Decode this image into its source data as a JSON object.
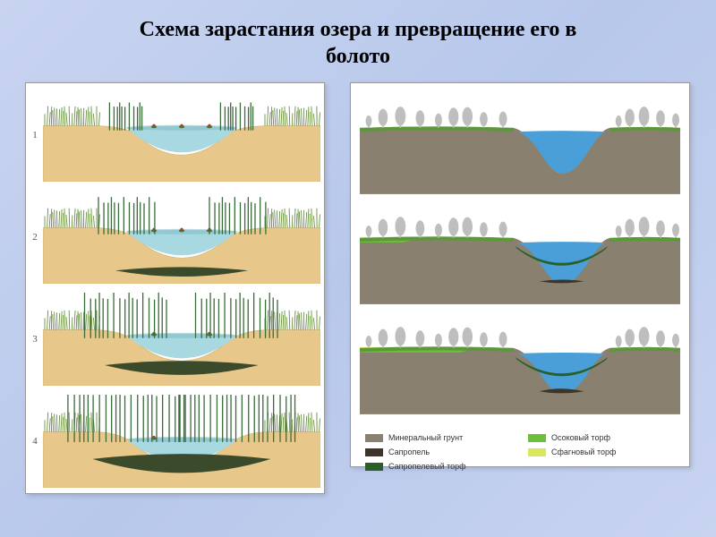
{
  "title_line1": "Схема зарастания озера и превращение его в",
  "title_line2": "болото",
  "left": {
    "stages": [
      {
        "num": "1",
        "waterTop": 0.42,
        "sedimentDepth": 0.0,
        "reedHeight": 0.3,
        "reedSpread": 0.12,
        "lilies": 3
      },
      {
        "num": "2",
        "waterTop": 0.44,
        "sedimentDepth": 0.18,
        "reedHeight": 0.4,
        "reedSpread": 0.2,
        "lilies": 3
      },
      {
        "num": "3",
        "waterTop": 0.46,
        "sedimentDepth": 0.35,
        "reedHeight": 0.5,
        "reedSpread": 0.3,
        "lilies": 2
      },
      {
        "num": "4",
        "waterTop": 0.48,
        "sedimentDepth": 0.55,
        "reedHeight": 0.6,
        "reedSpread": 0.42,
        "lilies": 1
      }
    ],
    "colors": {
      "sand": "#e8c88a",
      "sandDark": "#d4b071",
      "water": "#a8d8e0",
      "waterDark": "#7bb8c4",
      "sediment": "#3a4a2a",
      "grass": "#6a9040",
      "reed": "#3a6b3a",
      "lily": "#c83030"
    }
  },
  "right": {
    "stages": [
      {
        "waterLevel": 0.28,
        "sapropel": 0.0,
        "sedgePeat": 0.0,
        "sphagnum": 0.0
      },
      {
        "waterLevel": 0.34,
        "sapropel": 0.12,
        "sedgePeat": 0.06,
        "sphagnum": 0.04
      },
      {
        "waterLevel": 0.4,
        "sapropel": 0.2,
        "sedgePeat": 0.14,
        "sphagnum": 0.12
      }
    ],
    "colors": {
      "mineral": "#8a8070",
      "mineralDark": "#6b6255",
      "sapropel": "#3d3528",
      "sapropelPeat": "#2a6028",
      "sedgePeat": "#6bbf3a",
      "sphagnum": "#d8e85a",
      "water": "#4a9fd8",
      "tree": "#b8b8b8",
      "grass": "#5a9838"
    }
  },
  "legend": [
    {
      "color": "#8a8070",
      "label": "Минеральный грунт"
    },
    {
      "color": "#6bbf3a",
      "label": "Осоковый торф"
    },
    {
      "color": "#3d3528",
      "label": "Сапропель"
    },
    {
      "color": "#d8e85a",
      "label": "Сфагновый торф"
    },
    {
      "color": "#2a6028",
      "label": "Сапропелевый торф"
    }
  ]
}
